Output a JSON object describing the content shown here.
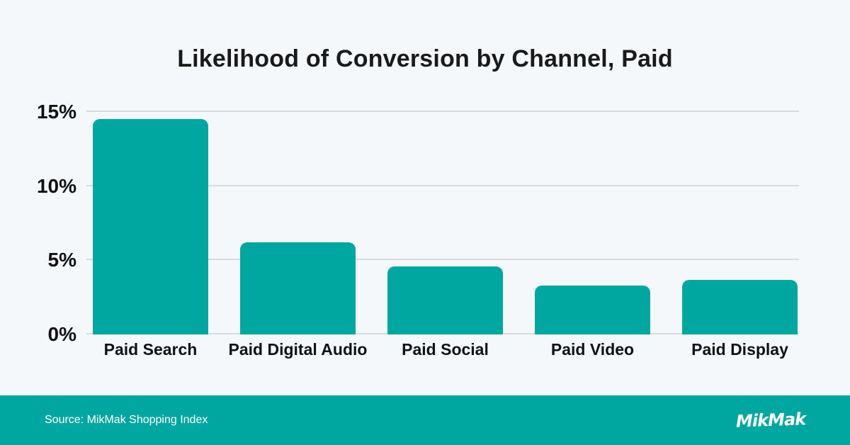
{
  "title": "Likelihood of Conversion by Channel, Paid",
  "chart_data": {
    "type": "bar",
    "title": "Likelihood of Conversion by Channel, Paid",
    "categories": [
      "Paid Search",
      "Paid Digital Audio",
      "Paid Social",
      "Paid Video",
      "Paid Display"
    ],
    "values": [
      14.5,
      6.2,
      4.6,
      3.3,
      3.7
    ],
    "values_unit": "%",
    "xlabel": "",
    "ylabel": "",
    "ylim": [
      0,
      15
    ],
    "yticks": [
      0,
      5,
      10,
      15
    ],
    "ytick_labels": [
      "0%",
      "5%",
      "10%",
      "15%"
    ],
    "grid": true,
    "legend": false,
    "bar_color": "#00a6a0"
  },
  "footer": {
    "source_text": "Source: MikMak Shopping Index",
    "logo_text": "MikMak",
    "background": "#00a6a0"
  },
  "colors": {
    "background": "#f4f8fb",
    "grid": "#d6dbdf",
    "text": "#1a1a1a",
    "footer_text": "#ffffff"
  }
}
